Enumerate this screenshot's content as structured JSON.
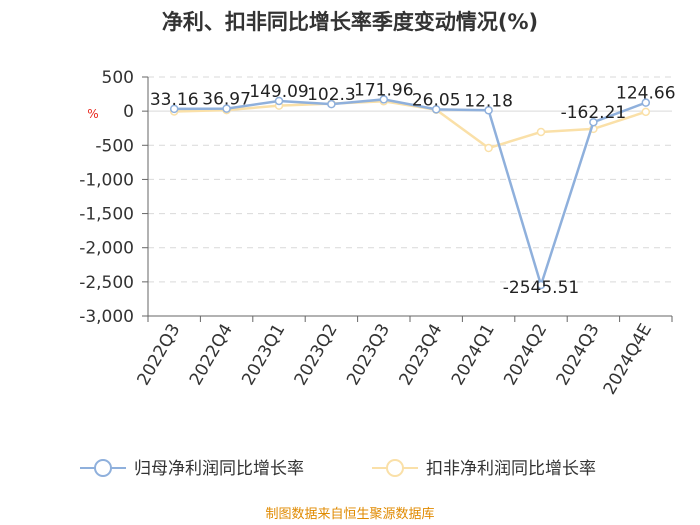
{
  "chart_data": {
    "type": "line",
    "title": "净利、扣非同比增长率季度变动情况(%)",
    "unit_label": "%",
    "categories": [
      "2022Q3",
      "2022Q4",
      "2023Q1",
      "2023Q2",
      "2023Q3",
      "2023Q4",
      "2024Q1",
      "2024Q2",
      "2024Q3",
      "2024Q4E"
    ],
    "yticks": [
      "500",
      "0",
      "-500",
      "-1,000",
      "-1,500",
      "-2,000",
      "-2,500",
      "-3,000"
    ],
    "ylim": [
      -3000,
      500
    ],
    "grid": true,
    "legend_position": "bottom",
    "series": [
      {
        "name": "归母净利润同比增长率",
        "color": "#8fb0dc",
        "values": [
          33.16,
          36.97,
          149.09,
          102.3,
          171.96,
          26.05,
          12.18,
          -2545.51,
          -162.21,
          124.66
        ],
        "labels": [
          "33.16",
          "36.97",
          "149.09",
          "102.3",
          "171.96",
          "26.05",
          "12.18",
          "-2545.51",
          "-162.21",
          "124.66"
        ]
      },
      {
        "name": "扣非净利润同比增长率",
        "color": "#fae0a8",
        "values": [
          -5,
          15,
          80,
          110,
          145,
          20,
          -540,
          -305,
          -260,
          -10
        ],
        "labels": []
      }
    ]
  },
  "footer": {
    "source": "制图数据来自恒生聚源数据库"
  }
}
